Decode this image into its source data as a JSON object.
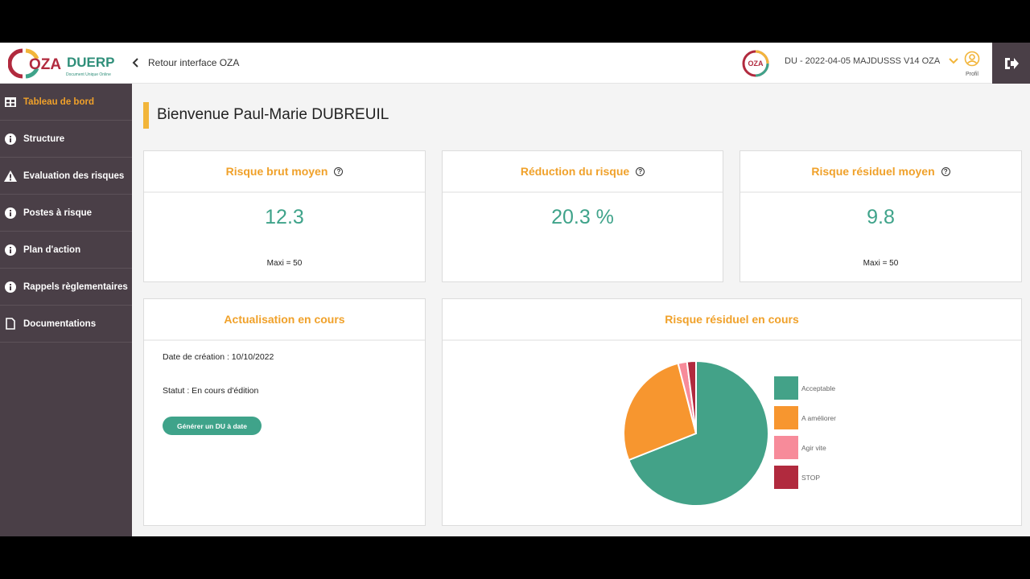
{
  "header": {
    "logo_text_oza": "OZA",
    "logo_text_duerp": "DUERP",
    "logo_tagline": "Document Unique Online",
    "back_label": "Retour interface OZA",
    "du_logo_text": "OZA",
    "du_select_value": "DU - 2022-04-05 MAJDUSSS V14 OZA",
    "profile_label": "Profil"
  },
  "sidebar": {
    "items": [
      {
        "label": "Tableau de bord",
        "icon": "table-icon",
        "active": true
      },
      {
        "label": "Structure",
        "icon": "info-icon"
      },
      {
        "label": "Evaluation des risques",
        "icon": "warning-icon"
      },
      {
        "label": "Postes à risque",
        "icon": "info-icon"
      },
      {
        "label": "Plan d'action",
        "icon": "info-icon"
      },
      {
        "label": "Rappels règlementaires",
        "icon": "info-icon"
      },
      {
        "label": "Documentations",
        "icon": "document-icon"
      }
    ]
  },
  "main": {
    "welcome": "Bienvenue Paul-Marie DUBREUIL",
    "kpis": [
      {
        "title": "Risque brut moyen",
        "value": "12.3",
        "max": "Maxi = 50"
      },
      {
        "title": "Réduction du risque",
        "value": "20.3 %",
        "max": ""
      },
      {
        "title": "Risque résiduel moyen",
        "value": "9.8",
        "max": "Maxi = 50"
      }
    ],
    "actualisation": {
      "title": "Actualisation en cours",
      "creation": "Date de création : 10/10/2022",
      "status": "Statut : En cours d'édition",
      "button": "Générer un DU à date"
    },
    "residual_chart_title": "Risque résiduel en cours"
  },
  "colors": {
    "accent": "#f0a12a",
    "green": "#3fa38a",
    "sidebar": "#4a3f47"
  },
  "chart_data": {
    "type": "pie",
    "title": "Risque résiduel en cours",
    "categories": [
      "Acceptable",
      "A améliorer",
      "Agir vite",
      "STOP"
    ],
    "values": [
      69,
      27,
      2,
      2
    ],
    "colors": [
      "#43a288",
      "#f7962f",
      "#f78b9a",
      "#b12a3e"
    ],
    "legend": "right"
  }
}
